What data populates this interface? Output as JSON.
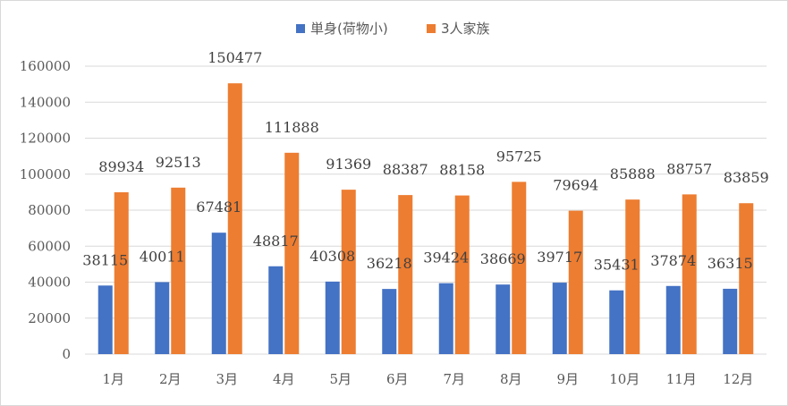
{
  "chart_data": {
    "type": "bar",
    "categories": [
      "1月",
      "2月",
      "3月",
      "4月",
      "5月",
      "6月",
      "7月",
      "8月",
      "9月",
      "10月",
      "11月",
      "12月"
    ],
    "series": [
      {
        "name": "単身(荷物小)",
        "color": "#4472c4",
        "values": [
          38115,
          40011,
          67481,
          48817,
          40308,
          36218,
          39424,
          38669,
          39717,
          35431,
          37874,
          36315
        ]
      },
      {
        "name": "3人家族",
        "color": "#ed7d31",
        "values": [
          89934,
          92513,
          150477,
          111888,
          91369,
          88387,
          88158,
          95725,
          79694,
          85888,
          88757,
          83859
        ]
      }
    ],
    "title": "",
    "xlabel": "",
    "ylabel": "",
    "ylim": [
      0,
      160000
    ],
    "yticks": [
      0,
      20000,
      40000,
      60000,
      80000,
      100000,
      120000,
      140000,
      160000
    ],
    "grid": true,
    "legend": "top-center"
  }
}
